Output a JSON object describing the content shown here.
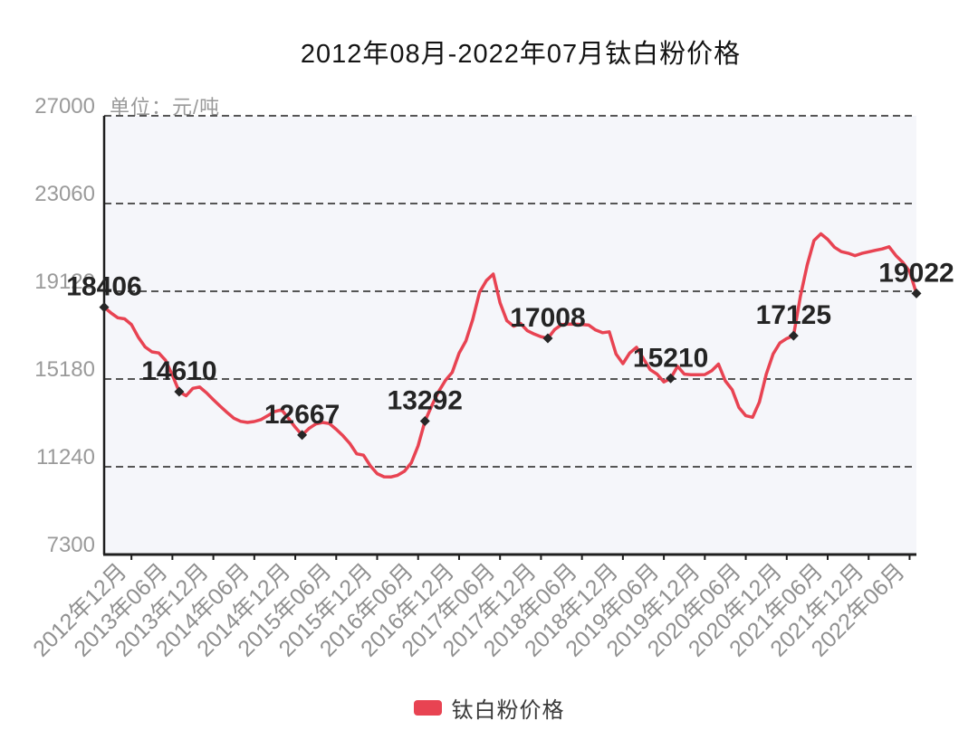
{
  "title": "2012年08月-2022年07月钛白粉价格",
  "unit_label": "单位：元/吨",
  "legend": {
    "label": "钛白粉价格",
    "color": "#e84352"
  },
  "colors": {
    "line": "#e84352",
    "plot_background": "#f5f6fa",
    "gridline": "#555555",
    "axis": "#1f1f1f",
    "y_tick_label": "#9a9a9a",
    "x_tick_label": "#909090",
    "point_label": "#242424",
    "marker": "#262626",
    "title": "#141414",
    "unit": "#999999"
  },
  "chart_data": {
    "type": "line",
    "title": "2012年08月-2022年07月钛白粉价格",
    "series_name": "钛白粉价格",
    "unit": "元/吨",
    "ylim": [
      7300,
      27000
    ],
    "y_ticks": [
      7300,
      11240,
      15180,
      19120,
      23060,
      27000
    ],
    "grid": "dashed",
    "legend_position": "bottom",
    "x_tick_labels": [
      "2012年12月",
      "2013年06月",
      "2013年12月",
      "2014年06月",
      "2014年12月",
      "2015年06月",
      "2015年12月",
      "2016年06月",
      "2016年12月",
      "2017年06月",
      "2017年12月",
      "2018年06月",
      "2018年12月",
      "2019年06月",
      "2019年12月",
      "2020年06月",
      "2020年12月",
      "2021年06月",
      "2021年12月",
      "2022年06月"
    ],
    "x_tick_indices": [
      4,
      10,
      16,
      22,
      28,
      34,
      40,
      46,
      52,
      58,
      64,
      70,
      76,
      82,
      88,
      94,
      100,
      106,
      112,
      118
    ],
    "x_range_months": [
      "2012年08月",
      "2022年07月"
    ],
    "values": [
      18406,
      18150,
      17930,
      17880,
      17620,
      17060,
      16620,
      16400,
      16350,
      16020,
      15350,
      14610,
      14430,
      14760,
      14820,
      14560,
      14250,
      13960,
      13680,
      13420,
      13280,
      13230,
      13270,
      13360,
      13540,
      13720,
      13800,
      13420,
      13010,
      12667,
      12960,
      13160,
      13230,
      13180,
      12920,
      12630,
      12280,
      11820,
      11760,
      11280,
      10930,
      10790,
      10780,
      10860,
      11040,
      11420,
      12180,
      13292,
      13980,
      14620,
      15120,
      15480,
      16340,
      16890,
      17850,
      19080,
      19600,
      19890,
      18600,
      17800,
      17550,
      17680,
      17350,
      17200,
      17080,
      17008,
      17400,
      17620,
      17650,
      17640,
      17630,
      17600,
      17380,
      17260,
      17300,
      16300,
      15870,
      16350,
      16600,
      16100,
      15600,
      15400,
      15050,
      15210,
      15750,
      15400,
      15370,
      15370,
      15380,
      15550,
      15850,
      15100,
      14700,
      13900,
      13530,
      13460,
      14150,
      15400,
      16300,
      16800,
      17000,
      17125,
      18900,
      20300,
      21400,
      21700,
      21450,
      21100,
      20900,
      20830,
      20720,
      20820,
      20890,
      20960,
      21020,
      21120,
      20720,
      20420,
      20010,
      19022
    ],
    "labeled_points": [
      {
        "index": 0,
        "label": "18406"
      },
      {
        "index": 11,
        "label": "14610"
      },
      {
        "index": 29,
        "label": "12667"
      },
      {
        "index": 47,
        "label": "13292"
      },
      {
        "index": 65,
        "label": "17008"
      },
      {
        "index": 83,
        "label": "15210"
      },
      {
        "index": 101,
        "label": "17125"
      },
      {
        "index": 119,
        "label": "19022"
      }
    ]
  }
}
